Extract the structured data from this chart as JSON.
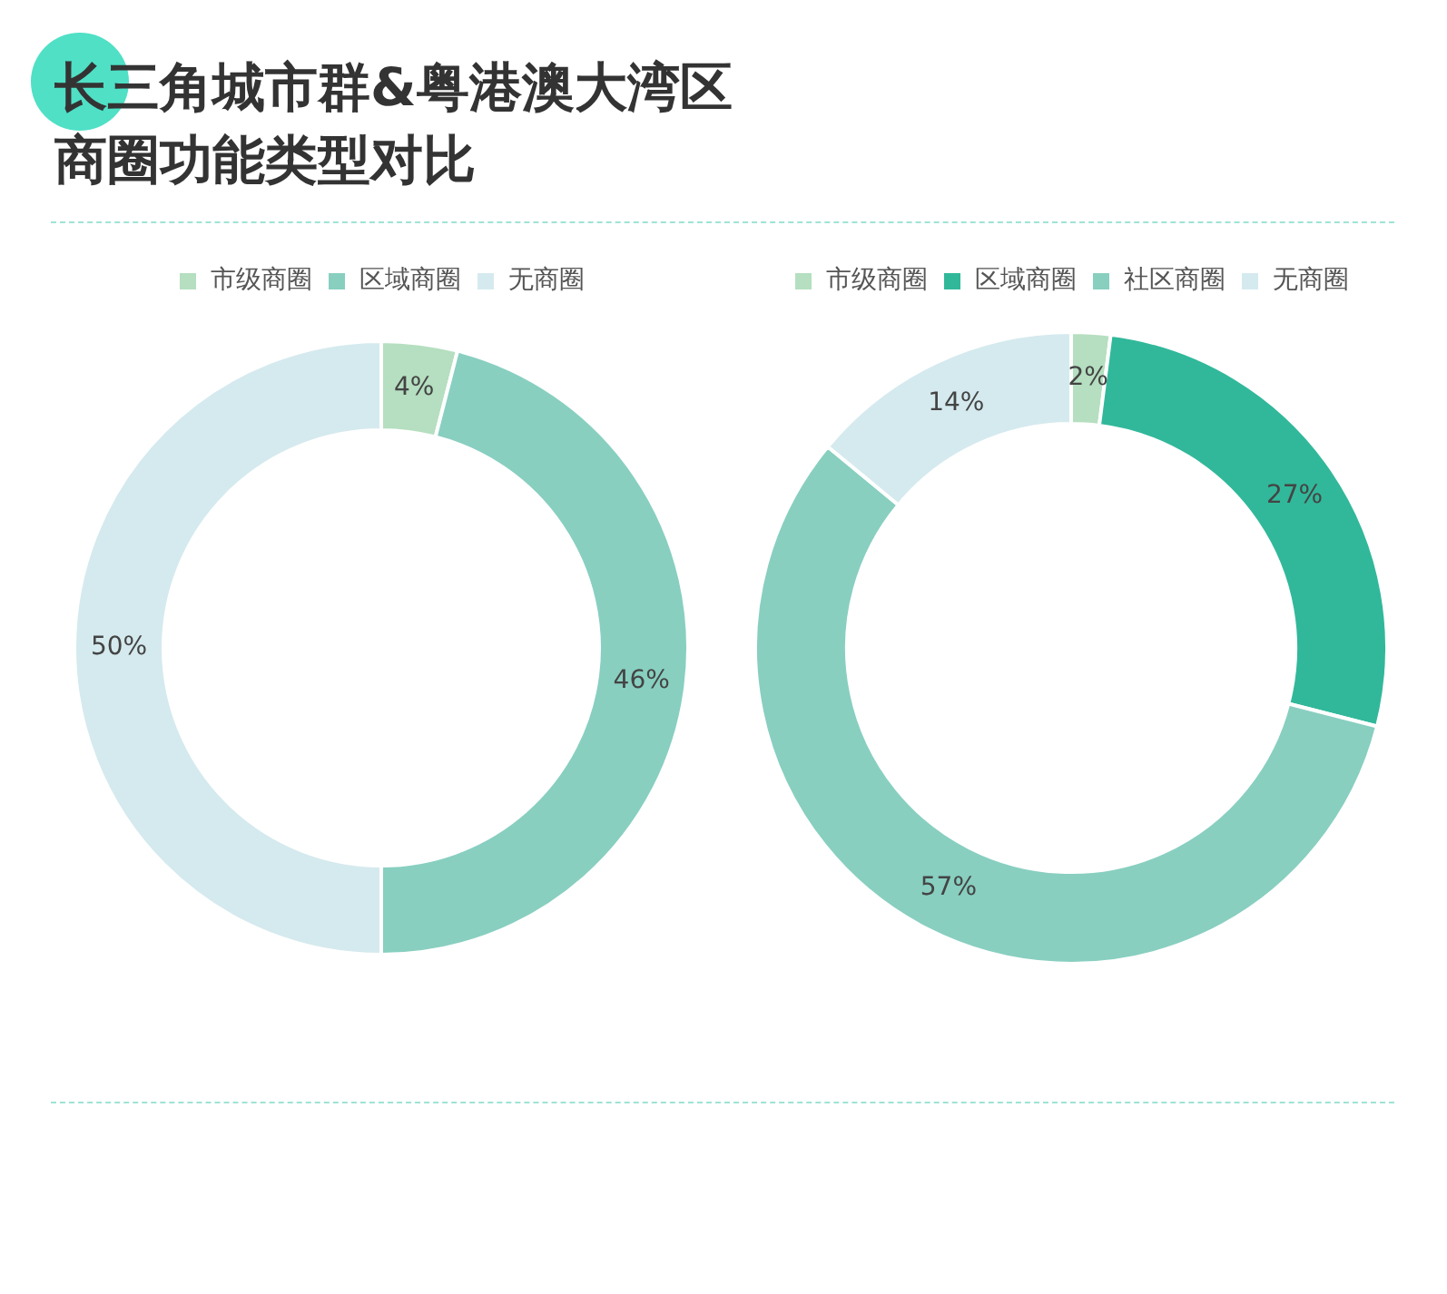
{
  "chart_data": [
    {
      "type": "donut",
      "title": "长三角城市群&粤港澳大湾区商圈功能类型对比",
      "categories": [
        "市级商圈",
        "区域商圈",
        "无商圈"
      ],
      "values": [
        4,
        46,
        50
      ],
      "colors": [
        "#b5dfc0",
        "#88cfc0",
        "#d5eaee"
      ],
      "value_labels": [
        "4%",
        "46%",
        "50%"
      ],
      "legend": "top"
    },
    {
      "type": "donut",
      "categories": [
        "市级商圈",
        "区域商圈",
        "社区商圈",
        "无商圈"
      ],
      "values": [
        2,
        27,
        57,
        14
      ],
      "colors": [
        "#b5dfc0",
        "#31b89a",
        "#88cfc0",
        "#d5eaee"
      ],
      "value_labels": [
        "2%",
        "27%",
        "57%",
        "14%"
      ],
      "legend": "top"
    }
  ]
}
